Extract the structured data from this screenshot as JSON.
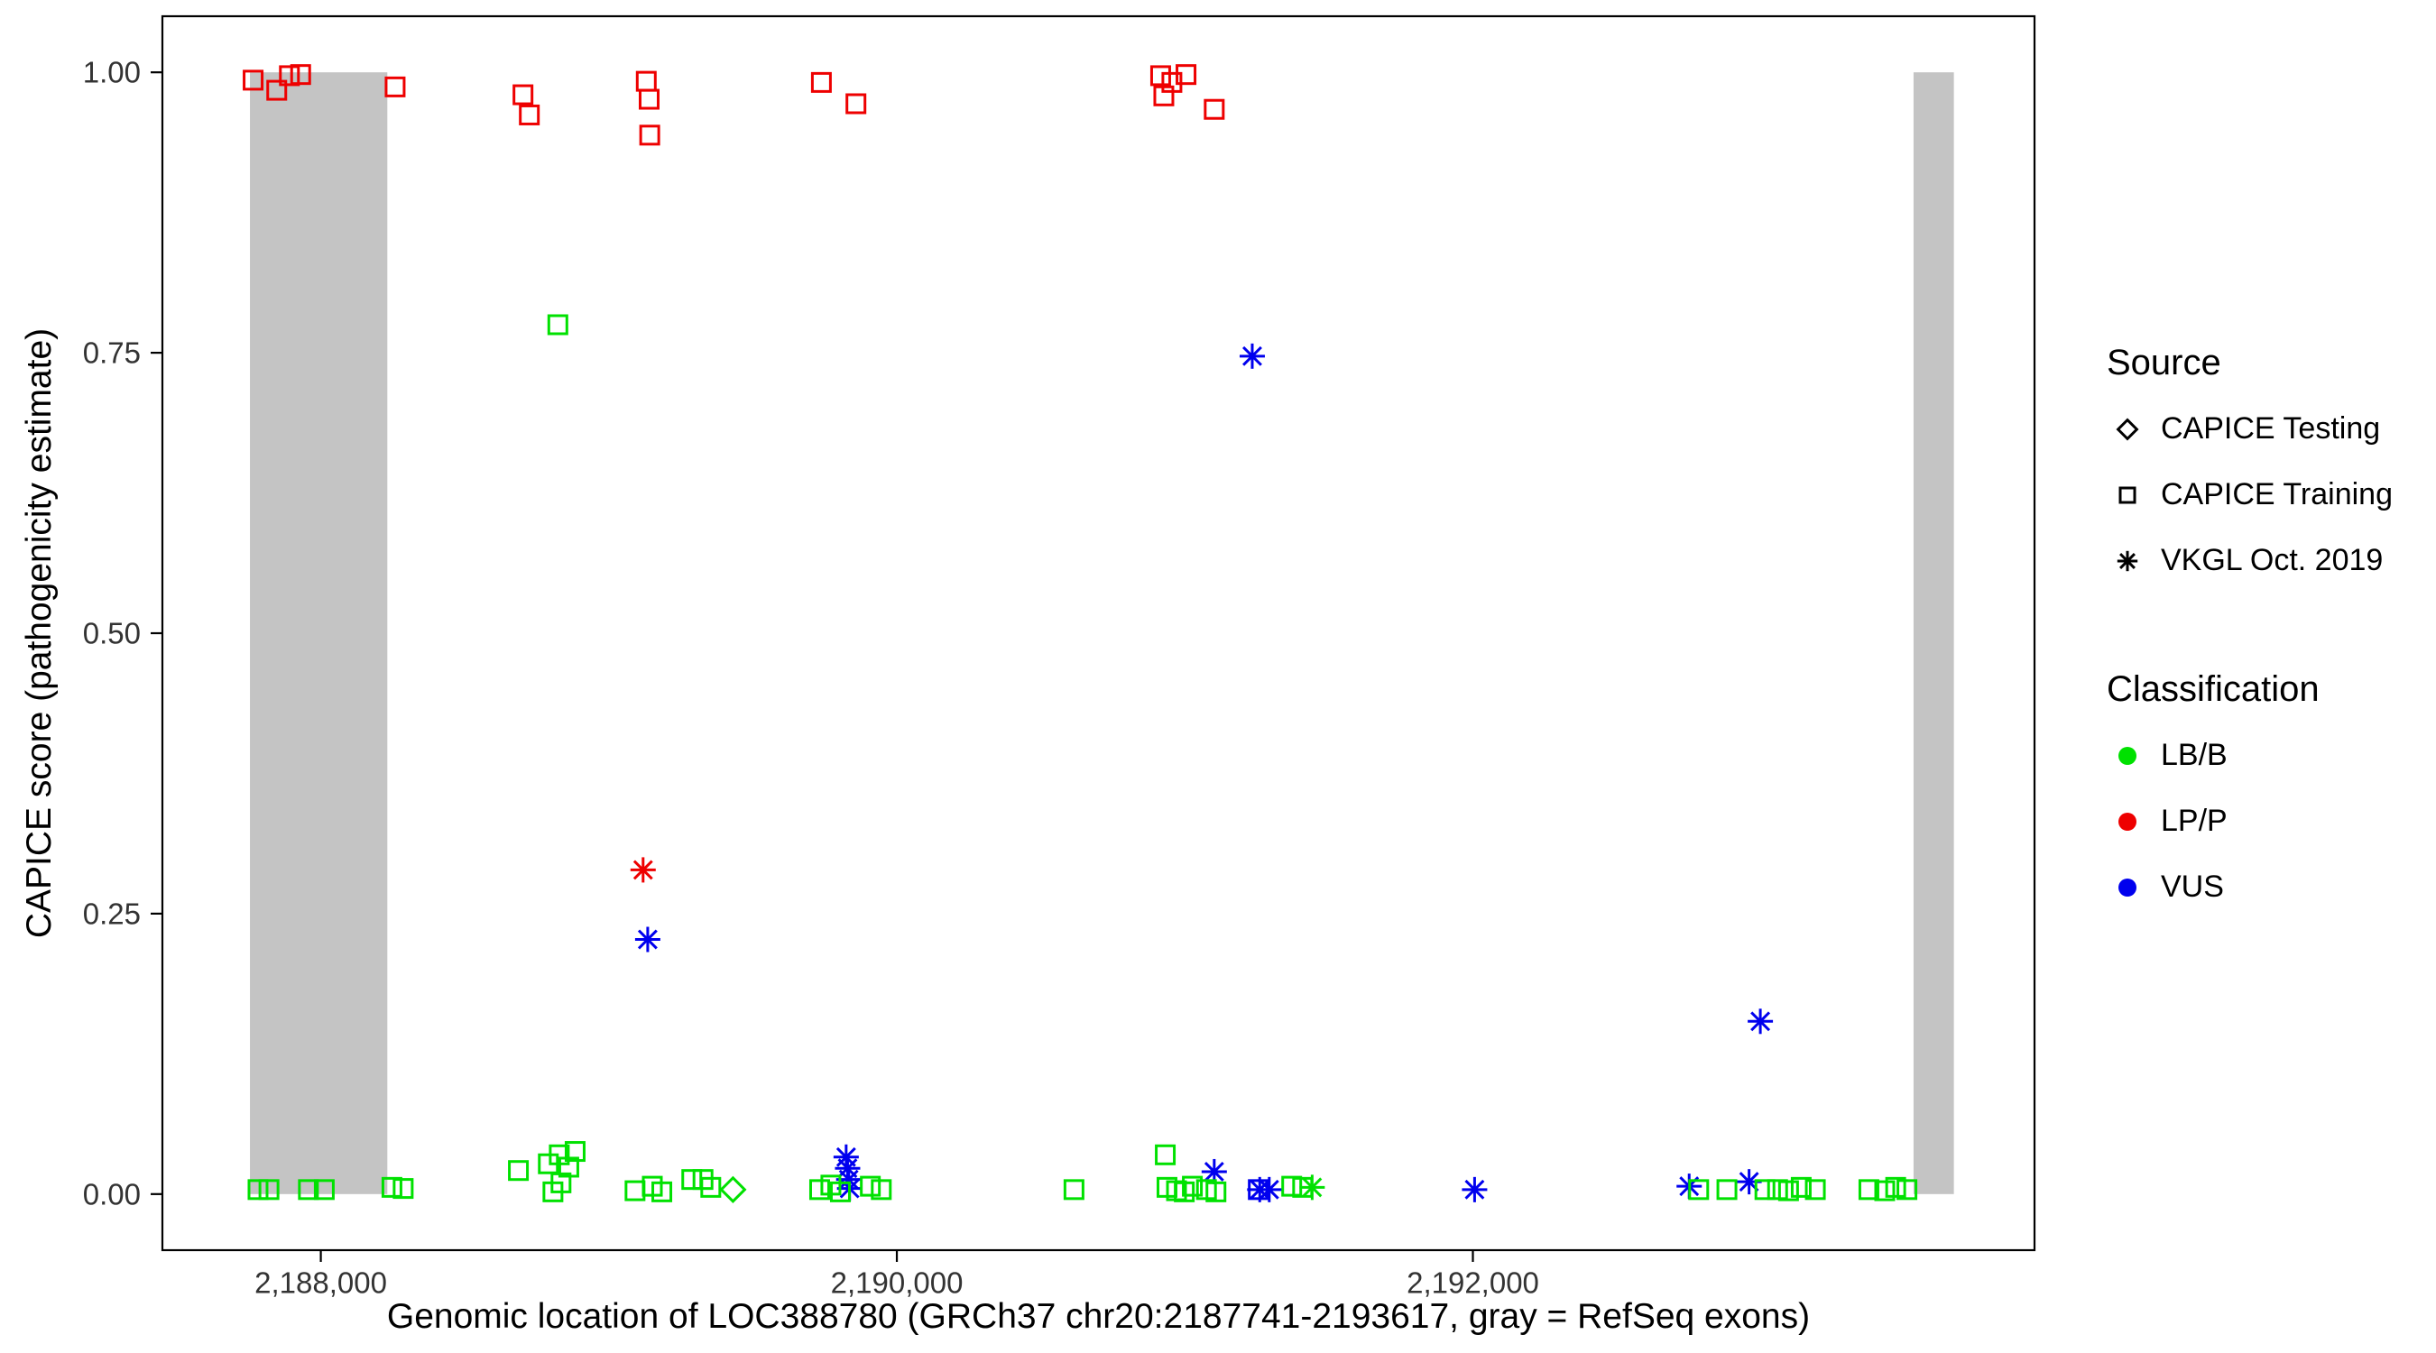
{
  "chart_data": {
    "type": "scatter",
    "title": "",
    "xlabel": "Genomic location of LOC388780 (GRCh37 chr20:2187741-2193617, gray = RefSeq exons)",
    "ylabel": "CAPICE score (pathogenicity estimate)",
    "xlim": [
      2187450,
      2193950
    ],
    "ylim": [
      -0.05,
      1.05
    ],
    "grid": "off",
    "legend_position": "right",
    "x_ticks": [
      {
        "value": 2188000,
        "label": "2,188,000"
      },
      {
        "value": 2190000,
        "label": "2,190,000"
      },
      {
        "value": 2192000,
        "label": "2,192,000"
      }
    ],
    "y_ticks": [
      {
        "value": 0.0,
        "label": "0.00"
      },
      {
        "value": 0.25,
        "label": "0.25"
      },
      {
        "value": 0.5,
        "label": "0.50"
      },
      {
        "value": 0.75,
        "label": "0.75"
      },
      {
        "value": 1.0,
        "label": "1.00"
      }
    ],
    "exon_color": "#C4C4C4",
    "exons": [
      {
        "x_start": 2187754,
        "x_end": 2188231,
        "y_start": 0.0,
        "y_end": 1.0
      },
      {
        "x_start": 2193530,
        "x_end": 2193670,
        "y_start": 0.0,
        "y_end": 1.0
      }
    ],
    "series_colors": {
      "LB/B": "#00E100",
      "LP/P": "#EE0000",
      "VUS": "#0000EE"
    },
    "shape_map": {
      "CAPICE Testing": "diamond",
      "CAPICE Training": "square",
      "VKGL Oct. 2019": "asterisk"
    },
    "points": [
      {
        "x": 2187765,
        "y": 0.993,
        "s": "CAPICE Training",
        "c": "LP/P"
      },
      {
        "x": 2187847,
        "y": 0.984,
        "s": "CAPICE Training",
        "c": "LP/P"
      },
      {
        "x": 2187891,
        "y": 0.997,
        "s": "CAPICE Training",
        "c": "LP/P"
      },
      {
        "x": 2187930,
        "y": 0.998,
        "s": "CAPICE Training",
        "c": "LP/P"
      },
      {
        "x": 2188258,
        "y": 0.987,
        "s": "CAPICE Training",
        "c": "LP/P"
      },
      {
        "x": 2188702,
        "y": 0.98,
        "s": "CAPICE Training",
        "c": "LP/P"
      },
      {
        "x": 2188724,
        "y": 0.962,
        "s": "CAPICE Training",
        "c": "LP/P"
      },
      {
        "x": 2189130,
        "y": 0.992,
        "s": "CAPICE Training",
        "c": "LP/P"
      },
      {
        "x": 2189140,
        "y": 0.976,
        "s": "CAPICE Training",
        "c": "LP/P"
      },
      {
        "x": 2189142,
        "y": 0.944,
        "s": "CAPICE Training",
        "c": "LP/P"
      },
      {
        "x": 2189738,
        "y": 0.991,
        "s": "CAPICE Training",
        "c": "LP/P"
      },
      {
        "x": 2189858,
        "y": 0.972,
        "s": "CAPICE Training",
        "c": "LP/P"
      },
      {
        "x": 2190916,
        "y": 0.997,
        "s": "CAPICE Training",
        "c": "LP/P"
      },
      {
        "x": 2190955,
        "y": 0.991,
        "s": "CAPICE Training",
        "c": "LP/P"
      },
      {
        "x": 2190927,
        "y": 0.979,
        "s": "CAPICE Training",
        "c": "LP/P"
      },
      {
        "x": 2191004,
        "y": 0.998,
        "s": "CAPICE Training",
        "c": "LP/P"
      },
      {
        "x": 2191102,
        "y": 0.967,
        "s": "CAPICE Training",
        "c": "LP/P"
      },
      {
        "x": 2189119,
        "y": 0.289,
        "s": "VKGL Oct. 2019",
        "c": "LP/P"
      },
      {
        "x": 2191234,
        "y": 0.747,
        "s": "VKGL Oct. 2019",
        "c": "VUS"
      },
      {
        "x": 2189135,
        "y": 0.227,
        "s": "VKGL Oct. 2019",
        "c": "VUS"
      },
      {
        "x": 2192998,
        "y": 0.154,
        "s": "VKGL Oct. 2019",
        "c": "VUS"
      },
      {
        "x": 2189824,
        "y": 0.033,
        "s": "VKGL Oct. 2019",
        "c": "VUS"
      },
      {
        "x": 2189829,
        "y": 0.023,
        "s": "VKGL Oct. 2019",
        "c": "VUS"
      },
      {
        "x": 2189833,
        "y": 0.013,
        "s": "VKGL Oct. 2019",
        "c": "VUS"
      },
      {
        "x": 2189836,
        "y": 0.005,
        "s": "VKGL Oct. 2019",
        "c": "VUS"
      },
      {
        "x": 2191102,
        "y": 0.02,
        "s": "VKGL Oct. 2019",
        "c": "VUS"
      },
      {
        "x": 2191260,
        "y": 0.004,
        "s": "VKGL Oct. 2019",
        "c": "VUS"
      },
      {
        "x": 2191293,
        "y": 0.004,
        "s": "VKGL Oct. 2019",
        "c": "VUS"
      },
      {
        "x": 2192006,
        "y": 0.004,
        "s": "VKGL Oct. 2019",
        "c": "VUS"
      },
      {
        "x": 2192751,
        "y": 0.007,
        "s": "VKGL Oct. 2019",
        "c": "VUS"
      },
      {
        "x": 2192959,
        "y": 0.011,
        "s": "VKGL Oct. 2019",
        "c": "VUS"
      },
      {
        "x": 2191442,
        "y": 0.006,
        "s": "VKGL Oct. 2019",
        "c": "LB/B"
      },
      {
        "x": 2189431,
        "y": 0.004,
        "s": "CAPICE Testing",
        "c": "LB/B"
      },
      {
        "x": 2191255,
        "y": 0.004,
        "s": "CAPICE Training",
        "c": "VUS"
      },
      {
        "x": 2188823,
        "y": 0.775,
        "s": "CAPICE Training",
        "c": "LB/B"
      },
      {
        "x": 2187782,
        "y": 0.004,
        "s": "CAPICE Training",
        "c": "LB/B"
      },
      {
        "x": 2187820,
        "y": 0.004,
        "s": "CAPICE Training",
        "c": "LB/B"
      },
      {
        "x": 2187957,
        "y": 0.004,
        "s": "CAPICE Training",
        "c": "LB/B"
      },
      {
        "x": 2188012,
        "y": 0.004,
        "s": "CAPICE Training",
        "c": "LB/B"
      },
      {
        "x": 2188247,
        "y": 0.006,
        "s": "CAPICE Training",
        "c": "LB/B"
      },
      {
        "x": 2188286,
        "y": 0.005,
        "s": "CAPICE Training",
        "c": "LB/B"
      },
      {
        "x": 2188686,
        "y": 0.021,
        "s": "CAPICE Training",
        "c": "LB/B"
      },
      {
        "x": 2188790,
        "y": 0.027,
        "s": "CAPICE Training",
        "c": "LB/B"
      },
      {
        "x": 2188828,
        "y": 0.035,
        "s": "CAPICE Training",
        "c": "LB/B"
      },
      {
        "x": 2188861,
        "y": 0.024,
        "s": "CAPICE Training",
        "c": "LB/B"
      },
      {
        "x": 2188883,
        "y": 0.038,
        "s": "CAPICE Training",
        "c": "LB/B"
      },
      {
        "x": 2188806,
        "y": 0.002,
        "s": "CAPICE Training",
        "c": "LB/B"
      },
      {
        "x": 2188834,
        "y": 0.01,
        "s": "CAPICE Training",
        "c": "LB/B"
      },
      {
        "x": 2189091,
        "y": 0.003,
        "s": "CAPICE Training",
        "c": "LB/B"
      },
      {
        "x": 2189151,
        "y": 0.007,
        "s": "CAPICE Training",
        "c": "LB/B"
      },
      {
        "x": 2189184,
        "y": 0.002,
        "s": "CAPICE Training",
        "c": "LB/B"
      },
      {
        "x": 2189288,
        "y": 0.013,
        "s": "CAPICE Training",
        "c": "LB/B"
      },
      {
        "x": 2189327,
        "y": 0.013,
        "s": "CAPICE Training",
        "c": "LB/B"
      },
      {
        "x": 2189354,
        "y": 0.006,
        "s": "CAPICE Training",
        "c": "LB/B"
      },
      {
        "x": 2189732,
        "y": 0.004,
        "s": "CAPICE Training",
        "c": "LB/B"
      },
      {
        "x": 2189771,
        "y": 0.008,
        "s": "CAPICE Training",
        "c": "LB/B"
      },
      {
        "x": 2189804,
        "y": 0.002,
        "s": "CAPICE Training",
        "c": "LB/B"
      },
      {
        "x": 2189908,
        "y": 0.007,
        "s": "CAPICE Training",
        "c": "LB/B"
      },
      {
        "x": 2189946,
        "y": 0.004,
        "s": "CAPICE Training",
        "c": "LB/B"
      },
      {
        "x": 2190615,
        "y": 0.004,
        "s": "CAPICE Training",
        "c": "LB/B"
      },
      {
        "x": 2190932,
        "y": 0.035,
        "s": "CAPICE Training",
        "c": "LB/B"
      },
      {
        "x": 2190938,
        "y": 0.006,
        "s": "CAPICE Training",
        "c": "LB/B"
      },
      {
        "x": 2190971,
        "y": 0.003,
        "s": "CAPICE Training",
        "c": "LB/B"
      },
      {
        "x": 2190998,
        "y": 0.002,
        "s": "CAPICE Training",
        "c": "LB/B"
      },
      {
        "x": 2191026,
        "y": 0.007,
        "s": "CAPICE Training",
        "c": "LB/B"
      },
      {
        "x": 2191075,
        "y": 0.004,
        "s": "CAPICE Training",
        "c": "LB/B"
      },
      {
        "x": 2191108,
        "y": 0.002,
        "s": "CAPICE Training",
        "c": "LB/B"
      },
      {
        "x": 2191371,
        "y": 0.007,
        "s": "CAPICE Training",
        "c": "LB/B"
      },
      {
        "x": 2191409,
        "y": 0.006,
        "s": "CAPICE Training",
        "c": "LB/B"
      },
      {
        "x": 2192784,
        "y": 0.004,
        "s": "CAPICE Training",
        "c": "LB/B"
      },
      {
        "x": 2192882,
        "y": 0.004,
        "s": "CAPICE Training",
        "c": "LB/B"
      },
      {
        "x": 2193014,
        "y": 0.004,
        "s": "CAPICE Training",
        "c": "LB/B"
      },
      {
        "x": 2193058,
        "y": 0.004,
        "s": "CAPICE Training",
        "c": "LB/B"
      },
      {
        "x": 2193096,
        "y": 0.003,
        "s": "CAPICE Training",
        "c": "LB/B"
      },
      {
        "x": 2193140,
        "y": 0.006,
        "s": "CAPICE Training",
        "c": "LB/B"
      },
      {
        "x": 2193189,
        "y": 0.004,
        "s": "CAPICE Training",
        "c": "LB/B"
      },
      {
        "x": 2193375,
        "y": 0.004,
        "s": "CAPICE Training",
        "c": "LB/B"
      },
      {
        "x": 2193430,
        "y": 0.003,
        "s": "CAPICE Training",
        "c": "LB/B"
      },
      {
        "x": 2193468,
        "y": 0.006,
        "s": "CAPICE Training",
        "c": "LB/B"
      },
      {
        "x": 2193507,
        "y": 0.004,
        "s": "CAPICE Training",
        "c": "LB/B"
      }
    ]
  },
  "legend": {
    "source_title": "Source",
    "source_items": [
      {
        "label": "CAPICE Testing",
        "shape": "diamond"
      },
      {
        "label": "CAPICE Training",
        "shape": "square"
      },
      {
        "label": "VKGL Oct. 2019",
        "shape": "asterisk"
      }
    ],
    "classification_title": "Classification",
    "classification_items": [
      {
        "label": "LB/B",
        "color": "#00E100"
      },
      {
        "label": "LP/P",
        "color": "#EE0000"
      },
      {
        "label": "VUS",
        "color": "#0000EE"
      }
    ]
  }
}
